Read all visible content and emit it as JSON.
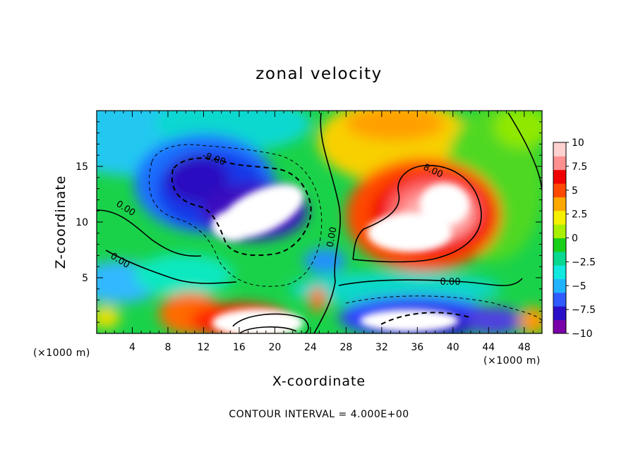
{
  "chart_data": {
    "type": "heatmap",
    "title": "zonal velocity",
    "xlabel": "X-coordinate",
    "ylabel": "Z-coordinate",
    "x_unit_left": "(×1000 m)",
    "x_unit_right": "(×1000 m)",
    "xlim": [
      0,
      50
    ],
    "ylim": [
      0,
      20
    ],
    "xticks": [
      "4",
      "8",
      "12",
      "16",
      "20",
      "24",
      "28",
      "32",
      "36",
      "40",
      "44",
      "48"
    ],
    "xtick_values": [
      4,
      8,
      12,
      16,
      20,
      24,
      28,
      32,
      36,
      40,
      44,
      48
    ],
    "yticks": [
      "5",
      "10",
      "15"
    ],
    "ytick_values": [
      5,
      10,
      15
    ],
    "colorbar": {
      "min": -10,
      "max": 10,
      "tick_values": [
        10,
        7.5,
        5,
        2.5,
        0,
        -2.5,
        -5,
        -7.5,
        -10
      ],
      "tick_labels": [
        "10",
        "7.5",
        "5",
        "2.5",
        "0",
        "−2.5",
        "−5",
        "−7.5",
        "−10"
      ],
      "stops": [
        "#7a00a8",
        "#2a0fc8",
        "#2f5bff",
        "#20b4ff",
        "#10e8e0",
        "#08d890",
        "#18d018",
        "#a8f000",
        "#f4f000",
        "#ffa800",
        "#ff4800",
        "#f00000",
        "#ff9090",
        "#ffd0d0"
      ]
    },
    "contour_interval_text": "CONTOUR INTERVAL = 4.000E+00",
    "contour_labels": [
      "-8.00",
      "8.00",
      "0.00",
      "0.00",
      "0.00",
      "0.00"
    ],
    "features": [
      {
        "kind": "negative core",
        "center": [
          19,
          11
        ],
        "peak": -10
      },
      {
        "kind": "positive core",
        "center": [
          36,
          10
        ],
        "peak": 10
      },
      {
        "kind": "surface negative",
        "center": [
          36,
          1
        ],
        "peak": -10
      },
      {
        "kind": "surface positive",
        "center": [
          19,
          1
        ],
        "peak": 10
      }
    ],
    "grid": false,
    "legend": "colorbar right"
  }
}
